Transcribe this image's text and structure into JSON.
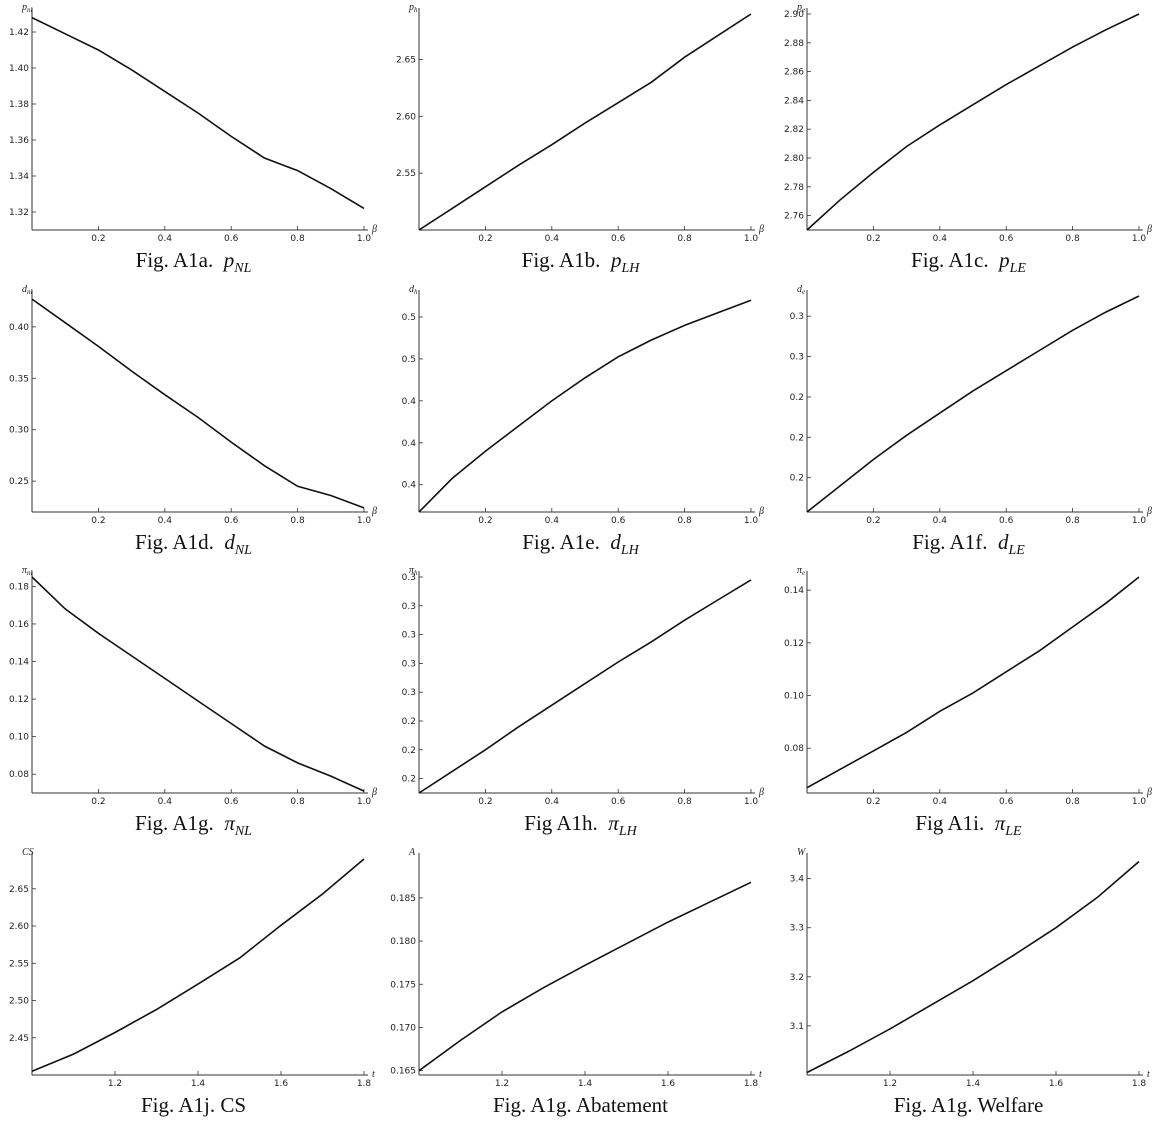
{
  "chart_data": [
    {
      "id": "a",
      "type": "line",
      "caption": {
        "prefix": "Fig. A1a.",
        "sym": "p",
        "sub": "NL"
      },
      "ylabel": "p_nl",
      "xlabel": "β",
      "xlim": [
        0,
        1
      ],
      "ylim": [
        1.31,
        1.43
      ],
      "xticks": [
        0.2,
        0.4,
        0.6,
        0.8,
        1.0
      ],
      "yticks": [
        1.32,
        1.34,
        1.36,
        1.38,
        1.4,
        1.42
      ],
      "x": [
        0,
        0.1,
        0.2,
        0.3,
        0.4,
        0.5,
        0.6,
        0.7,
        0.8,
        0.9,
        1.0
      ],
      "y": [
        1.428,
        1.419,
        1.41,
        1.399,
        1.387,
        1.375,
        1.362,
        1.35,
        1.343,
        1.333,
        1.322
      ]
    },
    {
      "id": "b",
      "type": "line",
      "caption": {
        "prefix": "Fig. A1b.",
        "sym": "p",
        "sub": "LH"
      },
      "ylabel": "p_h",
      "xlabel": "β",
      "xlim": [
        0,
        1
      ],
      "ylim": [
        2.5,
        2.69
      ],
      "xticks": [
        0.2,
        0.4,
        0.6,
        0.8,
        1.0
      ],
      "yticks": [
        2.55,
        2.6,
        2.65
      ],
      "x": [
        0,
        0.1,
        0.2,
        0.3,
        0.4,
        0.5,
        0.6,
        0.7,
        0.8,
        0.9,
        1.0
      ],
      "y": [
        2.5,
        2.519,
        2.538,
        2.557,
        2.575,
        2.594,
        2.612,
        2.63,
        2.652,
        2.671,
        2.69
      ]
    },
    {
      "id": "c",
      "type": "line",
      "caption": {
        "prefix": "Fig. A1c.",
        "sym": "p",
        "sub": "LE"
      },
      "ylabel": "p_e",
      "xlabel": "β",
      "xlim": [
        0,
        1
      ],
      "ylim": [
        2.75,
        2.9
      ],
      "xticks": [
        0.2,
        0.4,
        0.6,
        0.8,
        1.0
      ],
      "yticks": [
        2.76,
        2.78,
        2.8,
        2.82,
        2.84,
        2.86,
        2.88,
        2.9
      ],
      "x": [
        0,
        0.1,
        0.2,
        0.3,
        0.4,
        0.5,
        0.6,
        0.7,
        0.8,
        0.9,
        1.0
      ],
      "y": [
        2.75,
        2.771,
        2.79,
        2.808,
        2.823,
        2.837,
        2.851,
        2.864,
        2.877,
        2.889,
        2.9
      ]
    },
    {
      "id": "d",
      "type": "line",
      "caption": {
        "prefix": "Fig. A1d.",
        "sym": "d",
        "sub": "NL"
      },
      "ylabel": "d_nl",
      "xlabel": "β",
      "xlim": [
        0,
        1
      ],
      "ylim": [
        0.22,
        0.43
      ],
      "xticks": [
        0.2,
        0.4,
        0.6,
        0.8,
        1.0
      ],
      "yticks": [
        0.25,
        0.3,
        0.35,
        0.4
      ],
      "x": [
        0,
        0.1,
        0.2,
        0.3,
        0.4,
        0.5,
        0.6,
        0.7,
        0.8,
        0.9,
        1.0
      ],
      "y": [
        0.427,
        0.404,
        0.381,
        0.357,
        0.334,
        0.312,
        0.288,
        0.265,
        0.245,
        0.236,
        0.224
      ]
    },
    {
      "id": "e",
      "type": "line",
      "caption": {
        "prefix": "Fig. A1e.",
        "sym": "d",
        "sub": "LH"
      },
      "ylabel": "d_h",
      "xlabel": "β",
      "xlim": [
        0,
        1
      ],
      "ylim": [
        0.387,
        0.49
      ],
      "xticks": [
        0.2,
        0.4,
        0.6,
        0.8,
        1.0
      ],
      "yticks": [
        0.4,
        0.42,
        0.44,
        0.46,
        0.48
      ],
      "x": [
        0,
        0.1,
        0.2,
        0.3,
        0.4,
        0.5,
        0.6,
        0.7,
        0.8,
        0.9,
        1.0
      ],
      "y": [
        0.387,
        0.403,
        0.416,
        0.428,
        0.44,
        0.451,
        0.461,
        0.469,
        0.476,
        0.482,
        0.488
      ]
    },
    {
      "id": "f",
      "type": "line",
      "caption": {
        "prefix": "Fig. A1f.",
        "sym": "d",
        "sub": "LE"
      },
      "ylabel": "d_e",
      "xlabel": "β",
      "xlim": [
        0,
        1
      ],
      "ylim": [
        0.183,
        0.29
      ],
      "xticks": [
        0.2,
        0.4,
        0.6,
        0.8,
        1.0
      ],
      "yticks": [
        0.2,
        0.22,
        0.24,
        0.26,
        0.28
      ],
      "x": [
        0,
        0.1,
        0.2,
        0.3,
        0.4,
        0.5,
        0.6,
        0.7,
        0.8,
        0.9,
        1.0
      ],
      "y": [
        0.183,
        0.196,
        0.209,
        0.221,
        0.232,
        0.243,
        0.253,
        0.263,
        0.273,
        0.282,
        0.29
      ]
    },
    {
      "id": "g",
      "type": "line",
      "caption": {
        "prefix": "Fig. A1g.",
        "sym": "π",
        "sub": "NL"
      },
      "ylabel": "π_nl",
      "xlabel": "β",
      "xlim": [
        0,
        1
      ],
      "ylim": [
        0.07,
        0.185
      ],
      "xticks": [
        0.2,
        0.4,
        0.6,
        0.8,
        1.0
      ],
      "yticks": [
        0.08,
        0.1,
        0.12,
        0.14,
        0.16,
        0.18
      ],
      "x": [
        0,
        0.1,
        0.2,
        0.3,
        0.4,
        0.5,
        0.6,
        0.7,
        0.8,
        0.9,
        1.0
      ],
      "y": [
        0.185,
        0.168,
        0.155,
        0.143,
        0.131,
        0.119,
        0.107,
        0.095,
        0.086,
        0.079,
        0.071
      ]
    },
    {
      "id": "h",
      "type": "line",
      "caption": {
        "prefix": "Fig A1h.",
        "sym": "π",
        "sub": "LH"
      },
      "ylabel": "π_h",
      "xlabel": "β",
      "xlim": [
        0,
        1
      ],
      "ylim": [
        0.19,
        0.34
      ],
      "xticks": [
        0.2,
        0.4,
        0.6,
        0.8,
        1.0
      ],
      "yticks": [
        0.2,
        0.22,
        0.24,
        0.26,
        0.28,
        0.3,
        0.32,
        0.34
      ],
      "x": [
        0,
        0.1,
        0.2,
        0.3,
        0.4,
        0.5,
        0.6,
        0.7,
        0.8,
        0.9,
        1.0
      ],
      "y": [
        0.19,
        0.205,
        0.22,
        0.236,
        0.251,
        0.266,
        0.281,
        0.295,
        0.31,
        0.324,
        0.338
      ]
    },
    {
      "id": "i",
      "type": "line",
      "caption": {
        "prefix": "Fig A1i.",
        "sym": "π",
        "sub": "LE"
      },
      "ylabel": "π_e",
      "xlabel": "β",
      "xlim": [
        0,
        1
      ],
      "ylim": [
        0.063,
        0.145
      ],
      "xticks": [
        0.2,
        0.4,
        0.6,
        0.8,
        1.0
      ],
      "yticks": [
        0.08,
        0.1,
        0.12,
        0.14
      ],
      "x": [
        0,
        0.1,
        0.2,
        0.3,
        0.4,
        0.5,
        0.6,
        0.7,
        0.8,
        0.9,
        1.0
      ],
      "y": [
        0.065,
        0.072,
        0.079,
        0.086,
        0.094,
        0.101,
        0.109,
        0.117,
        0.126,
        0.135,
        0.145
      ]
    },
    {
      "id": "j",
      "type": "line",
      "caption": {
        "prefix": "Fig. A1j. CS",
        "sym": "",
        "sub": ""
      },
      "ylabel": "CS",
      "xlabel": "t",
      "xlim": [
        1.0,
        1.8
      ],
      "ylim": [
        2.4,
        2.69
      ],
      "xticks": [
        1.2,
        1.4,
        1.6,
        1.8
      ],
      "yticks": [
        2.45,
        2.5,
        2.55,
        2.6,
        2.65
      ],
      "x": [
        1.0,
        1.1,
        1.2,
        1.3,
        1.4,
        1.5,
        1.6,
        1.7,
        1.8
      ],
      "y": [
        2.405,
        2.428,
        2.457,
        2.488,
        2.522,
        2.557,
        2.601,
        2.643,
        2.69
      ]
    },
    {
      "id": "k",
      "type": "line",
      "caption": {
        "prefix": "Fig. A1g. Abatement",
        "sym": "",
        "sub": ""
      },
      "ylabel": "A",
      "xlabel": "t",
      "xlim": [
        1.0,
        1.8
      ],
      "ylim": [
        0.1645,
        0.1895
      ],
      "xticks": [
        1.2,
        1.4,
        1.6,
        1.8
      ],
      "yticks": [
        0.165,
        0.17,
        0.175,
        0.18,
        0.185
      ],
      "x": [
        1.0,
        1.1,
        1.2,
        1.3,
        1.4,
        1.5,
        1.6,
        1.7,
        1.8
      ],
      "y": [
        0.165,
        0.1685,
        0.1718,
        0.1746,
        0.1772,
        0.1797,
        0.1822,
        0.1845,
        0.1868
      ]
    },
    {
      "id": "l",
      "type": "line",
      "caption": {
        "prefix": "Fig. A1g. Welfare",
        "sym": "",
        "sub": ""
      },
      "ylabel": "W",
      "xlabel": "t",
      "xlim": [
        1.0,
        1.8
      ],
      "ylim": [
        3.0,
        3.44
      ],
      "xticks": [
        1.2,
        1.4,
        1.6,
        1.8
      ],
      "yticks": [
        3.1,
        3.2,
        3.3,
        3.4
      ],
      "x": [
        1.0,
        1.1,
        1.2,
        1.3,
        1.4,
        1.5,
        1.6,
        1.7,
        1.8
      ],
      "y": [
        3.005,
        3.048,
        3.094,
        3.143,
        3.192,
        3.245,
        3.3,
        3.362,
        3.435
      ]
    }
  ]
}
